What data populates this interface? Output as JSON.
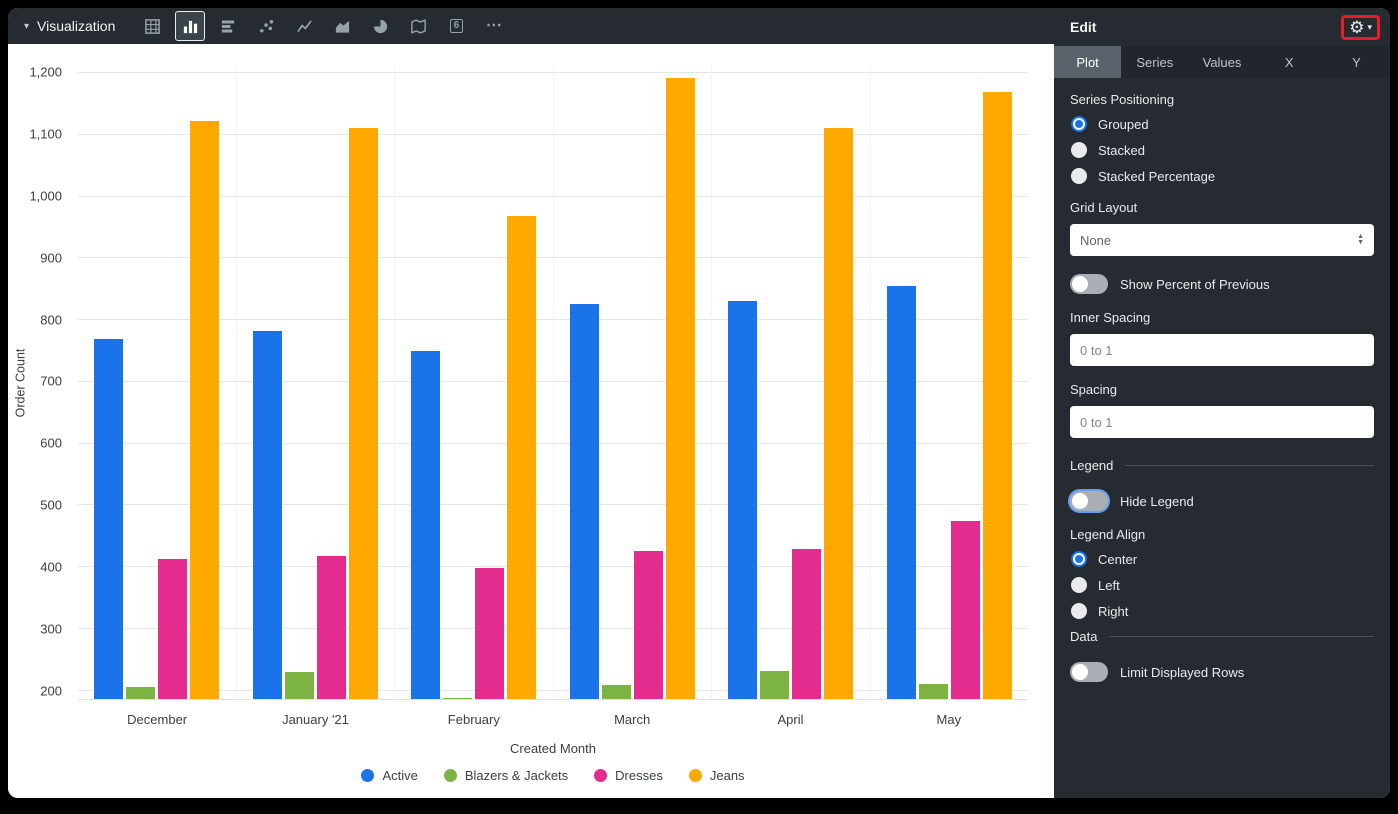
{
  "topbar": {
    "title": "Visualization",
    "collapse_caret": "▾",
    "icons": [
      {
        "name": "table",
        "selected": false
      },
      {
        "name": "column-chart",
        "selected": true
      },
      {
        "name": "bar-chart",
        "selected": false
      },
      {
        "name": "scatter",
        "selected": false
      },
      {
        "name": "line-chart",
        "selected": false
      },
      {
        "name": "area-chart",
        "selected": false
      },
      {
        "name": "pie-chart",
        "selected": false
      },
      {
        "name": "map",
        "selected": false
      },
      {
        "name": "single-value",
        "selected": false,
        "glyph": "6"
      },
      {
        "name": "more",
        "selected": false,
        "glyph": "⋯"
      }
    ]
  },
  "chart_data": {
    "type": "bar",
    "title": "",
    "categories": [
      "December",
      "January '21",
      "February",
      "March",
      "April",
      "May"
    ],
    "series": [
      {
        "name": "Active",
        "color": "#1A73E8",
        "values": [
          768,
          781,
          748,
          824,
          829,
          854
        ]
      },
      {
        "name": "Blazers & Jackets",
        "color": "#7CB342",
        "values": [
          205,
          228,
          186,
          207,
          230,
          209
        ]
      },
      {
        "name": "Dresses",
        "color": "#E32C8D",
        "values": [
          412,
          416,
          397,
          425,
          428,
          474
        ]
      },
      {
        "name": "Jeans",
        "color": "#FFA800",
        "values": [
          1121,
          1109,
          967,
          1190,
          1110,
          1168
        ]
      }
    ],
    "xlabel": "Created Month",
    "ylabel": "Order Count",
    "y_ticks": [
      200,
      300,
      400,
      500,
      600,
      700,
      800,
      900,
      1000,
      1100,
      1200
    ],
    "ylim": [
      185,
      1210
    ],
    "grid": true,
    "legend_position": "bottom"
  },
  "edit_panel": {
    "title": "Edit",
    "settings": {
      "gear_glyph": "⚙",
      "caret_glyph": "▾",
      "annotated": true
    },
    "tabs": [
      {
        "label": "Plot",
        "selected": true
      },
      {
        "label": "Series",
        "selected": false
      },
      {
        "label": "Values",
        "selected": false
      },
      {
        "label": "X",
        "selected": false
      },
      {
        "label": "Y",
        "selected": false
      }
    ],
    "series_positioning": {
      "label": "Series Positioning",
      "options": [
        {
          "label": "Grouped",
          "selected": true
        },
        {
          "label": "Stacked",
          "selected": false
        },
        {
          "label": "Stacked Percentage",
          "selected": false
        }
      ]
    },
    "grid_layout": {
      "label": "Grid Layout",
      "value": "None"
    },
    "show_percent_of_previous": {
      "label": "Show Percent of Previous",
      "on": false
    },
    "inner_spacing": {
      "label": "Inner Spacing",
      "placeholder": "0 to 1",
      "value": ""
    },
    "spacing": {
      "label": "Spacing",
      "placeholder": "0 to 1",
      "value": ""
    },
    "legend_section": {
      "label": "Legend"
    },
    "hide_legend": {
      "label": "Hide Legend",
      "on": false,
      "focused": true
    },
    "legend_align": {
      "label": "Legend Align",
      "options": [
        {
          "label": "Center",
          "selected": true
        },
        {
          "label": "Left",
          "selected": false
        },
        {
          "label": "Right",
          "selected": false
        }
      ]
    },
    "data_section": {
      "label": "Data"
    },
    "limit_displayed_rows": {
      "label": "Limit Displayed Rows",
      "on": false
    }
  }
}
